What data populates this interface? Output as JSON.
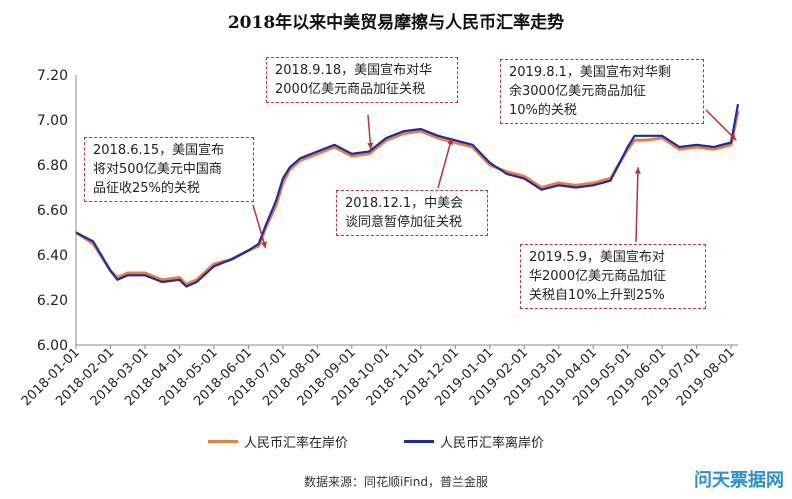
{
  "chart_data": {
    "type": "line",
    "title": "2018年以来中美贸易摩擦与人民币汇率走势",
    "ylim": [
      6.0,
      7.2
    ],
    "yticks": [
      "7.20",
      "7.00",
      "6.80",
      "6.60",
      "6.40",
      "6.20",
      "6.00"
    ],
    "xticks": [
      "2018-01-01",
      "2018-02-01",
      "2018-03-01",
      "2018-04-01",
      "2018-05-01",
      "2018-06-01",
      "2018-07-01",
      "2018-08-01",
      "2018-09-01",
      "2018-10-01",
      "2018-11-01",
      "2018-12-01",
      "2019-01-01",
      "2019-02-01",
      "2019-03-01",
      "2019-04-01",
      "2019-05-01",
      "2019-06-01",
      "2019-07-01",
      "2019-08-01"
    ],
    "series": [
      {
        "name": "人民币汇率在岸价",
        "color": "#e8803a",
        "x": [
          0,
          0.5,
          1,
          1.2,
          1.5,
          2,
          2.5,
          3,
          3.2,
          3.5,
          4,
          4.5,
          5,
          5.3,
          5.5,
          5.8,
          6,
          6.2,
          6.5,
          7,
          7.5,
          8,
          8.5,
          9,
          9.5,
          10,
          10.5,
          11,
          11.5,
          12,
          12.5,
          13,
          13.5,
          14,
          14.5,
          15,
          15.5,
          16,
          16.2,
          16.5,
          17,
          17.5,
          18,
          18.5,
          19,
          19.2
        ],
        "y": [
          6.5,
          6.45,
          6.33,
          6.3,
          6.32,
          6.32,
          6.29,
          6.3,
          6.27,
          6.29,
          6.36,
          6.38,
          6.42,
          6.44,
          6.52,
          6.62,
          6.72,
          6.78,
          6.82,
          6.85,
          6.88,
          6.84,
          6.85,
          6.91,
          6.94,
          6.95,
          6.92,
          6.9,
          6.88,
          6.8,
          6.77,
          6.75,
          6.7,
          6.72,
          6.71,
          6.72,
          6.74,
          6.87,
          6.91,
          6.91,
          6.92,
          6.87,
          6.88,
          6.87,
          6.89,
          7.04
        ]
      },
      {
        "name": "人民币汇率离岸价",
        "color": "#1f2aa8",
        "x": [
          0,
          0.5,
          1,
          1.2,
          1.5,
          2,
          2.5,
          3,
          3.2,
          3.5,
          4,
          4.5,
          5,
          5.3,
          5.5,
          5.8,
          6,
          6.2,
          6.5,
          7,
          7.5,
          8,
          8.5,
          9,
          9.5,
          10,
          10.5,
          11,
          11.5,
          12,
          12.5,
          13,
          13.5,
          14,
          14.5,
          15,
          15.5,
          16,
          16.2,
          16.5,
          17,
          17.5,
          18,
          18.5,
          19,
          19.2
        ],
        "y": [
          6.5,
          6.46,
          6.33,
          6.29,
          6.31,
          6.31,
          6.28,
          6.29,
          6.26,
          6.28,
          6.35,
          6.38,
          6.42,
          6.45,
          6.53,
          6.64,
          6.74,
          6.79,
          6.83,
          6.86,
          6.89,
          6.85,
          6.86,
          6.92,
          6.95,
          6.96,
          6.93,
          6.91,
          6.89,
          6.81,
          6.76,
          6.74,
          6.69,
          6.71,
          6.7,
          6.71,
          6.73,
          6.88,
          6.93,
          6.93,
          6.93,
          6.88,
          6.89,
          6.88,
          6.9,
          7.07
        ]
      }
    ],
    "annotations": [
      {
        "lines": [
          "2018.6.15，美国宣布",
          "将对500亿美元中国商",
          "品征收25%的关税"
        ],
        "arrow_x": 5.5,
        "arrow_y": 6.43
      },
      {
        "lines": [
          "2018.9.18，美国宣布对华",
          "2000亿美元商品加征关税"
        ],
        "arrow_x": 8.55,
        "arrow_y": 6.87
      },
      {
        "lines": [
          "2018.12.1，中美会",
          "谈同意暂停加征关税"
        ],
        "arrow_x": 10.9,
        "arrow_y": 6.92
      },
      {
        "lines": [
          "2019.5.9，美国宣布对",
          "华2000亿美元商品加征",
          "关税自10%上升到25%"
        ],
        "arrow_x": 16.3,
        "arrow_y": 6.79
      },
      {
        "lines": [
          "2019.8.1，美国宣布对华剩",
          "余3000亿美元商品加征",
          "10%的关税"
        ],
        "arrow_x": 19.15,
        "arrow_y": 6.91
      }
    ]
  },
  "source": "数据来源：同花顺iFind，普兰金服",
  "watermark": "问天票据网"
}
